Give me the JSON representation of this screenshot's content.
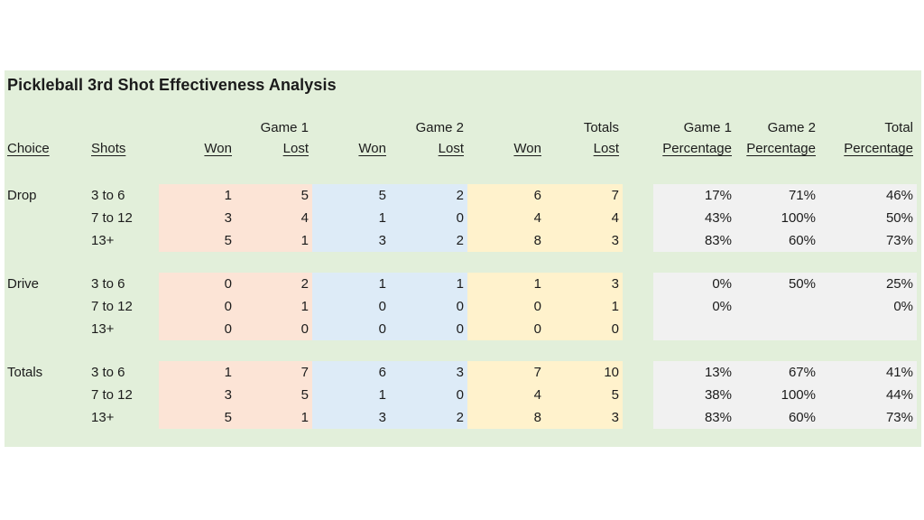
{
  "title": "Pickleball 3rd Shot Effectiveness Analysis",
  "colors": {
    "page-bg": "#ffffff",
    "sheet-bg": "#e2efda",
    "game1-fill": "#fce4d6",
    "game2-fill": "#ddebf7",
    "totals-fill": "#fff2cc",
    "pct-fill": "#f1f1f1",
    "text": "#1b1b1b"
  },
  "header": {
    "choice": "Choice",
    "shots": "Shots",
    "won": "Won",
    "lost": "Lost",
    "percentage": "Percentage",
    "group_game1": "Game 1",
    "group_game2": "Game 2",
    "group_totals": "Totals",
    "group_pct_game1": "Game 1",
    "group_pct_game2": "Game 2",
    "group_pct_total": "Total"
  },
  "sections": [
    {
      "choice": "Drop",
      "rows": [
        {
          "shots": "3 to 6",
          "g1_won": "1",
          "g1_lost": "5",
          "g2_won": "5",
          "g2_lost": "2",
          "t_won": "6",
          "t_lost": "7",
          "pct_g1": "17%",
          "pct_g2": "71%",
          "pct_total": "46%"
        },
        {
          "shots": "7 to 12",
          "g1_won": "3",
          "g1_lost": "4",
          "g2_won": "1",
          "g2_lost": "0",
          "t_won": "4",
          "t_lost": "4",
          "pct_g1": "43%",
          "pct_g2": "100%",
          "pct_total": "50%"
        },
        {
          "shots": "13+",
          "g1_won": "5",
          "g1_lost": "1",
          "g2_won": "3",
          "g2_lost": "2",
          "t_won": "8",
          "t_lost": "3",
          "pct_g1": "83%",
          "pct_g2": "60%",
          "pct_total": "73%"
        }
      ]
    },
    {
      "choice": "Drive",
      "rows": [
        {
          "shots": "3 to 6",
          "g1_won": "0",
          "g1_lost": "2",
          "g2_won": "1",
          "g2_lost": "1",
          "t_won": "1",
          "t_lost": "3",
          "pct_g1": "0%",
          "pct_g2": "50%",
          "pct_total": "25%"
        },
        {
          "shots": "7 to 12",
          "g1_won": "0",
          "g1_lost": "1",
          "g2_won": "0",
          "g2_lost": "0",
          "t_won": "0",
          "t_lost": "1",
          "pct_g1": "0%",
          "pct_g2": "",
          "pct_total": "0%"
        },
        {
          "shots": "13+",
          "g1_won": "0",
          "g1_lost": "0",
          "g2_won": "0",
          "g2_lost": "0",
          "t_won": "0",
          "t_lost": "0",
          "pct_g1": "",
          "pct_g2": "",
          "pct_total": ""
        }
      ]
    },
    {
      "choice": "Totals",
      "rows": [
        {
          "shots": "3 to 6",
          "g1_won": "1",
          "g1_lost": "7",
          "g2_won": "6",
          "g2_lost": "3",
          "t_won": "7",
          "t_lost": "10",
          "pct_g1": "13%",
          "pct_g2": "67%",
          "pct_total": "41%"
        },
        {
          "shots": "7 to 12",
          "g1_won": "3",
          "g1_lost": "5",
          "g2_won": "1",
          "g2_lost": "0",
          "t_won": "4",
          "t_lost": "5",
          "pct_g1": "38%",
          "pct_g2": "100%",
          "pct_total": "44%"
        },
        {
          "shots": "13+",
          "g1_won": "5",
          "g1_lost": "1",
          "g2_won": "3",
          "g2_lost": "2",
          "t_won": "8",
          "t_lost": "3",
          "pct_g1": "83%",
          "pct_g2": "60%",
          "pct_total": "73%"
        }
      ]
    }
  ]
}
